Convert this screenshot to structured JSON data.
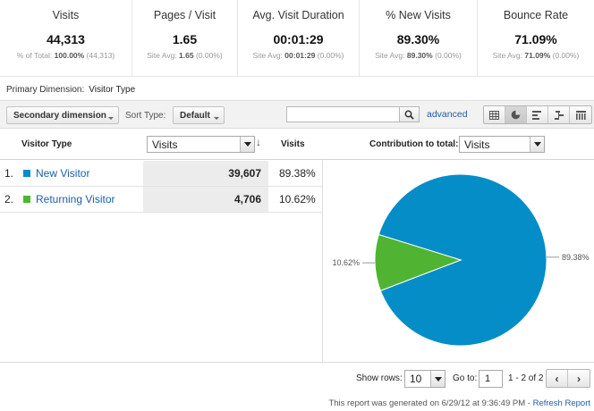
{
  "summary": [
    {
      "title": "Visits",
      "value": "44,313",
      "sub_prefix": "% of Total:",
      "sub_bold": "100.00%",
      "sub_suffix": "(44,313)"
    },
    {
      "title": "Pages / Visit",
      "value": "1.65",
      "sub_prefix": "Site Avg:",
      "sub_bold": "1.65",
      "sub_suffix": "(0.00%)"
    },
    {
      "title": "Avg. Visit Duration",
      "value": "00:01:29",
      "sub_prefix": "Site Avg:",
      "sub_bold": "00:01:29",
      "sub_suffix": "(0.00%)"
    },
    {
      "title": "% New Visits",
      "value": "89.30%",
      "sub_prefix": "Site Avg:",
      "sub_bold": "89.30%",
      "sub_suffix": "(0.00%)"
    },
    {
      "title": "Bounce Rate",
      "value": "71.09%",
      "sub_prefix": "Site Avg:",
      "sub_bold": "71.09%",
      "sub_suffix": "(0.00%)"
    }
  ],
  "primary": {
    "label": "Primary Dimension:",
    "value": "Visitor Type"
  },
  "toolbar": {
    "secondary_dimension": "Secondary dimension",
    "sort_label": "Sort Type:",
    "sort_value": "Default",
    "search_value": "",
    "advanced": "advanced",
    "views": [
      "table-icon",
      "pie-icon",
      "performance-icon",
      "comparison-icon",
      "pivot-icon"
    ]
  },
  "table": {
    "dimension_header": "Visitor Type",
    "metric_select": "Visits",
    "metric_header": "Visits",
    "contribution_label": "Contribution to total:",
    "contribution_select": "Visits",
    "rows": [
      {
        "num": "1.",
        "name": "New Visitor",
        "value": "39,607",
        "pct": "89.38%",
        "color": "#058dc7"
      },
      {
        "num": "2.",
        "name": "Returning Visitor",
        "value": "4,706",
        "pct": "10.62%",
        "color": "#50b432"
      }
    ]
  },
  "chart_data": {
    "type": "pie",
    "categories": [
      "New Visitor",
      "Returning Visitor"
    ],
    "values": [
      89.38,
      10.62
    ],
    "labels": [
      "89.38%",
      "10.62%"
    ],
    "colors": [
      "#058dc7",
      "#50b432"
    ]
  },
  "footer": {
    "show_rows_label": "Show rows:",
    "show_rows_value": "10",
    "goto_label": "Go to:",
    "goto_value": "1",
    "range": "1 - 2 of 2",
    "generated_text": "This report was generated on 6/29/12 at 9:36:49 PM -",
    "refresh": "Refresh Report"
  }
}
